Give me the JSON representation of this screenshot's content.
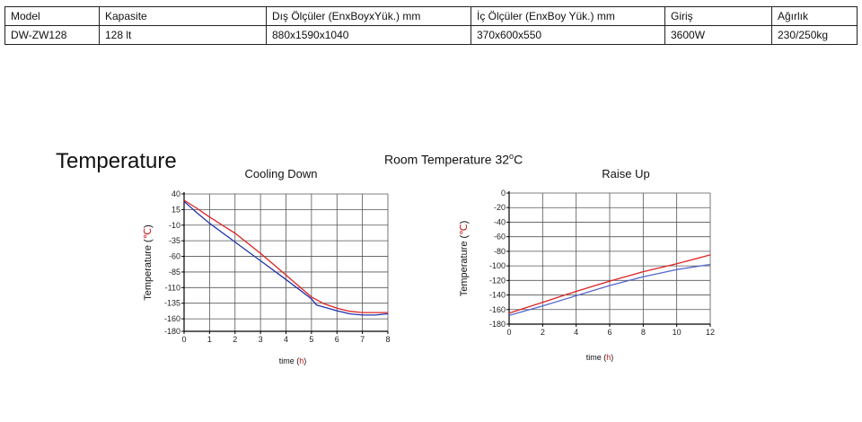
{
  "table": {
    "headers": [
      "Model",
      "Kapasite",
      "Dış Ölçüler (EnxBoyxYük.) mm",
      "İç Ölçüler (EnxBoy Yük.) mm",
      "Giriş",
      "Ağırlık"
    ],
    "rows": [
      [
        "DW-ZW128",
        "128 lt",
        "880x1590x1040",
        "370x600x550",
        "3600W",
        "230/250kg"
      ]
    ]
  },
  "heading": {
    "main": "Temperature",
    "room": "Room Temperature 32",
    "room_unit_deg": "o",
    "room_unit": "C"
  },
  "colors": {
    "red_series": "#dd2222",
    "blue_series": "#2233aa",
    "grid": "#555555",
    "axis_unit": "#cc1111"
  },
  "chart_data": [
    {
      "type": "line",
      "title": "Cooling Down",
      "ylabel": "Temperature",
      "ylabel_unit": "℃",
      "xlabel": "time",
      "xlabel_unit": "h",
      "xlim": [
        0,
        8
      ],
      "ylim": [
        -180,
        40
      ],
      "xticks": [
        0,
        1,
        2,
        3,
        4,
        5,
        6,
        7,
        8
      ],
      "yticks": [
        40,
        15,
        -10,
        -35,
        -60,
        -85,
        -110,
        -135,
        -160,
        -180
      ],
      "grid": true,
      "series": [
        {
          "color": "#dd2222",
          "x": [
            0,
            0.5,
            1,
            2,
            3,
            4,
            5,
            5.5,
            6,
            6.5,
            7,
            7.5,
            8
          ],
          "y": [
            30,
            17,
            3,
            -23,
            -55,
            -90,
            -125,
            -136,
            -143,
            -148,
            -150,
            -150,
            -150
          ]
        },
        {
          "color": "#2233aa",
          "x": [
            0,
            0.5,
            1,
            2,
            3,
            4,
            5,
            5.2,
            6,
            6.5,
            7,
            7.5,
            8
          ],
          "y": [
            28,
            10,
            -7,
            -37,
            -67,
            -97,
            -128,
            -138,
            -147,
            -152,
            -154,
            -154,
            -152
          ]
        }
      ]
    },
    {
      "type": "line",
      "title": "Raise Up",
      "ylabel": "Temperature",
      "ylabel_unit": "℃",
      "xlabel": "time",
      "xlabel_unit": "h",
      "xlim": [
        0,
        12
      ],
      "ylim": [
        -180,
        0
      ],
      "xticks": [
        0,
        2,
        4,
        6,
        8,
        10,
        12
      ],
      "yticks": [
        0,
        -20,
        -40,
        -60,
        -80,
        -100,
        -120,
        -140,
        -160,
        -180
      ],
      "grid": true,
      "series": [
        {
          "color": "#dd2222",
          "x": [
            0,
            2,
            4,
            6,
            8,
            10,
            12
          ],
          "y": [
            -165,
            -150,
            -135,
            -121,
            -108,
            -97,
            -85
          ]
        },
        {
          "color": "#5566cc",
          "x": [
            0,
            2,
            4,
            6,
            8,
            10,
            12
          ],
          "y": [
            -168,
            -155,
            -141,
            -127,
            -115,
            -105,
            -98
          ]
        }
      ]
    }
  ]
}
